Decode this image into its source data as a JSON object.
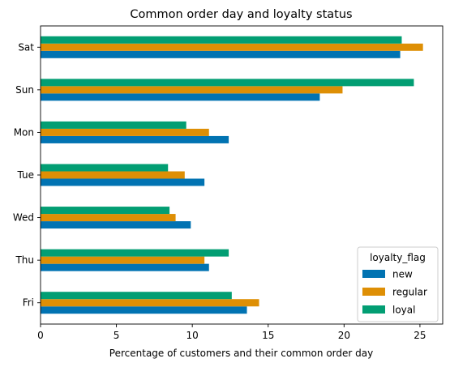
{
  "chart_data": {
    "type": "bar",
    "orientation": "horizontal",
    "title": "Common order day and loyalty status",
    "xlabel": "Percentage of customers and their common order day",
    "ylabel": "",
    "xlim": [
      0,
      26.5
    ],
    "xticks": [
      0,
      5,
      10,
      15,
      20,
      25
    ],
    "categories": [
      "Sat",
      "Sun",
      "Mon",
      "Tue",
      "Wed",
      "Thu",
      "Fri"
    ],
    "series": [
      {
        "name": "new",
        "color": "#0173b2",
        "values": [
          23.7,
          18.4,
          12.4,
          10.8,
          9.9,
          11.1,
          13.6
        ]
      },
      {
        "name": "regular",
        "color": "#de8f05",
        "values": [
          25.2,
          19.9,
          11.1,
          9.5,
          8.9,
          10.8,
          14.4
        ]
      },
      {
        "name": "loyal",
        "color": "#029e73",
        "values": [
          23.8,
          24.6,
          9.6,
          8.4,
          8.5,
          12.4,
          12.6
        ]
      }
    ],
    "legend": {
      "title": "loyalty_flag",
      "position": "lower-right"
    },
    "grid": false
  }
}
